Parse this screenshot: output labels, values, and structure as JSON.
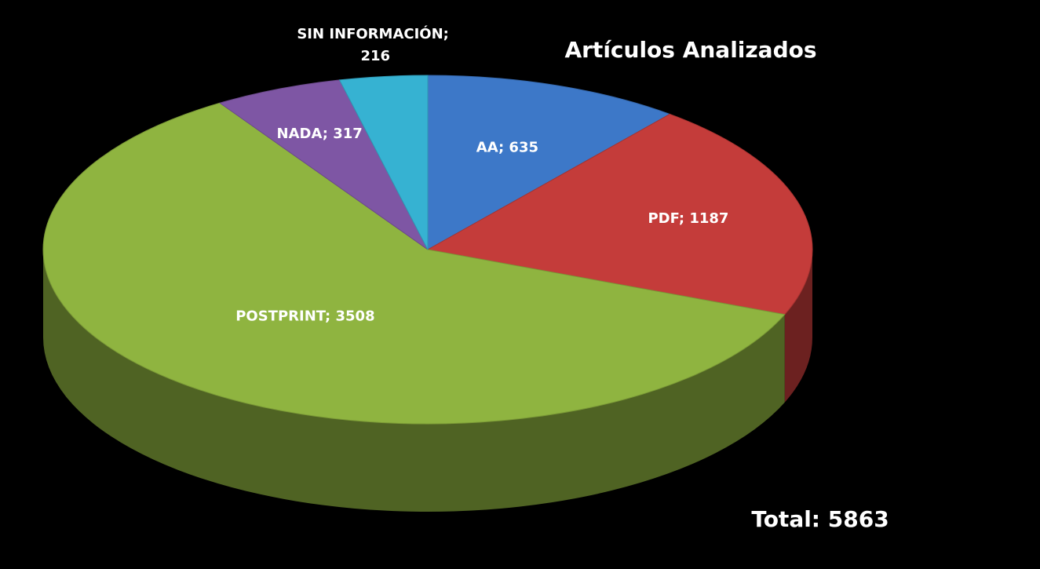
{
  "chart_data": {
    "type": "pie",
    "title": "Artículos Analizados",
    "categories": [
      "AA",
      "PDF",
      "POSTPRINT",
      "NADA",
      "SIN INFORMACIÓN"
    ],
    "values": [
      635,
      1187,
      3508,
      317,
      216
    ],
    "value_labels": [
      "AA; 635",
      "PDF; 1187",
      "POSTPRINT; 3508",
      "NADA; 317",
      "SIN INFORMACIÓN; 216"
    ],
    "colors": [
      "#3d78c8",
      "#c43c3a",
      "#8fb440",
      "#7e56a4",
      "#36b2d2"
    ],
    "annotation": "Total: 5863"
  }
}
